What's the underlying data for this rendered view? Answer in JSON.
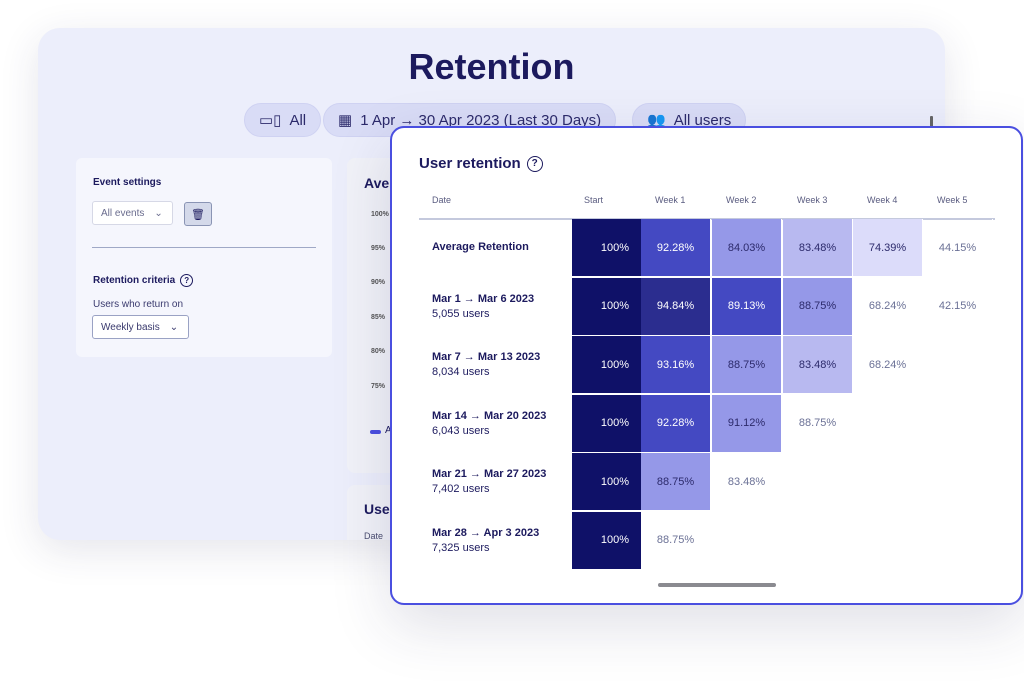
{
  "page": {
    "title": "Retention"
  },
  "filters": [
    {
      "icon": "devices-icon",
      "label": "All"
    },
    {
      "icon": "calendar-icon",
      "label": "1 Apr → 30 Apr 2023 (Last 30 Days)"
    },
    {
      "icon": "users-icon",
      "label": "All users"
    }
  ],
  "settings": {
    "event_heading": "Event settings",
    "event_select": "All events",
    "criteria_heading": "Retention criteria",
    "return_label": "Users who return on",
    "return_select": "Weekly basis"
  },
  "background_cards": {
    "chart_title_fragment": "Ave",
    "y_ticks": [
      "100%",
      "95%",
      "90%",
      "85%",
      "80%",
      "75%"
    ],
    "legend_fragment": "A",
    "table_title_fragment": "Use",
    "table_header_fragment": "Date"
  },
  "retention": {
    "title": "User retention",
    "headers": [
      "Date",
      "Start",
      "Week 1",
      "Week 2",
      "Week 3",
      "Week 4",
      "Week 5"
    ],
    "rows": [
      {
        "label": "Average Retention",
        "users": "",
        "values": [
          "100%",
          "92.28%",
          "84.03%",
          "83.48%",
          "74.39%",
          "44.15%"
        ],
        "colors": [
          "#0f1168",
          "#4449c2",
          "#9598e8",
          "#b8b9f0",
          "#dcdcfa",
          ""
        ]
      },
      {
        "label": "Mar 1 → Mar 6 2023",
        "users": "5,055 users",
        "values": [
          "100%",
          "94.84%",
          "89.13%",
          "88.75%",
          "68.24%",
          "42.15%"
        ],
        "colors": [
          "#0f1168",
          "#2b2d8f",
          "#4449c2",
          "#9598e8",
          "",
          ""
        ]
      },
      {
        "label": "Mar 7 → Mar 13 2023",
        "users": "8,034 users",
        "values": [
          "100%",
          "93.16%",
          "88.75%",
          "83.48%",
          "68.24%",
          ""
        ],
        "colors": [
          "#0f1168",
          "#4449c2",
          "#9598e8",
          "#b8b9f0",
          "",
          ""
        ]
      },
      {
        "label": "Mar 14 → Mar 20 2023",
        "users": "6,043 users",
        "values": [
          "100%",
          "92.28%",
          "91.12%",
          "88.75%",
          "",
          ""
        ],
        "colors": [
          "#0f1168",
          "#4449c2",
          "#9598e8",
          "",
          "",
          ""
        ]
      },
      {
        "label": "Mar 21 → Mar 27 2023",
        "users": "7,402 users",
        "values": [
          "100%",
          "88.75%",
          "83.48%",
          "",
          "",
          ""
        ],
        "colors": [
          "#0f1168",
          "#9598e8",
          "",
          "",
          "",
          ""
        ]
      },
      {
        "label": "Mar 28 → Apr 3 2023",
        "users": "7,325 users",
        "values": [
          "100%",
          "88.75%",
          "",
          "",
          "",
          ""
        ],
        "colors": [
          "#0f1168",
          "",
          "",
          "",
          "",
          ""
        ]
      }
    ]
  }
}
